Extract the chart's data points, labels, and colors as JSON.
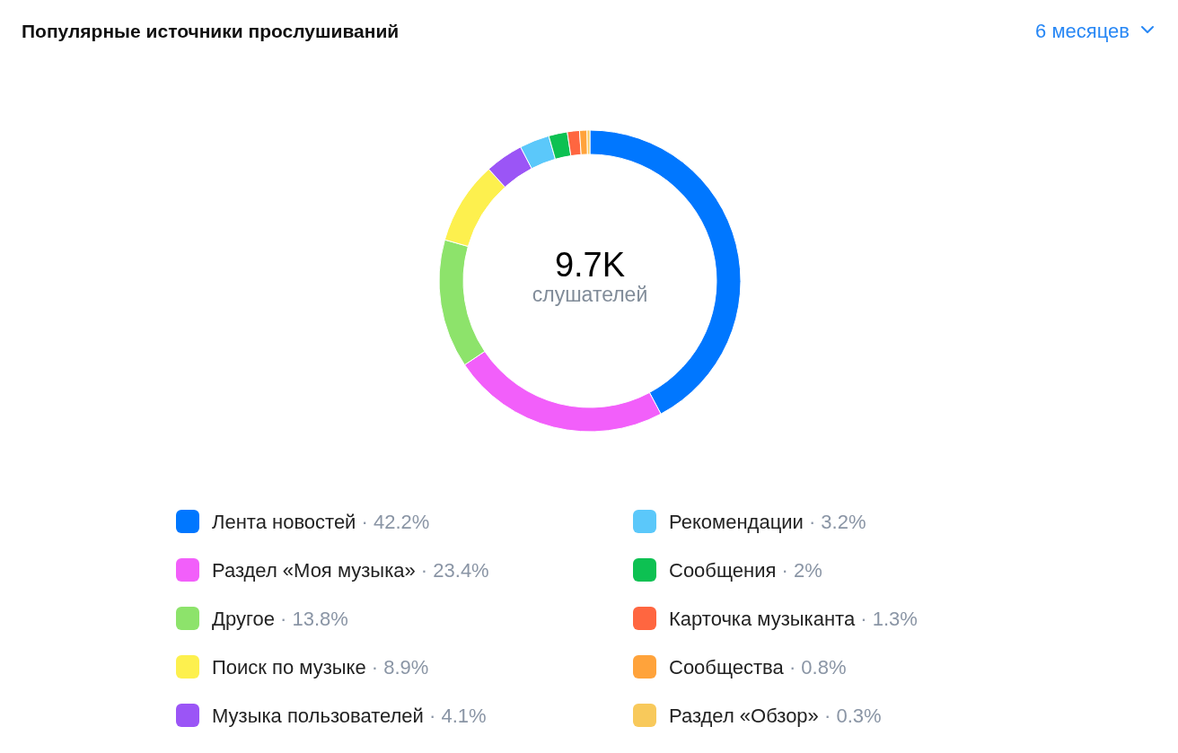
{
  "chart_data": {
    "type": "donut",
    "title": "Популярные источники прослушиваний",
    "categories": [
      "Лента новостей",
      "Раздел «Моя музыка»",
      "Другое",
      "Поиск по музыке",
      "Музыка пользователей",
      "Рекомендации",
      "Сообщения",
      "Карточка музыканта",
      "Сообщества",
      "Раздел «Обзор»"
    ],
    "values": [
      42.2,
      23.4,
      13.8,
      8.9,
      4.1,
      3.2,
      2,
      1.3,
      0.8,
      0.3
    ],
    "colors": [
      "#0077ff",
      "#f25ffa",
      "#8de36b",
      "#fdf04e",
      "#9b55f6",
      "#5bc8fa",
      "#0dc152",
      "#ff6640",
      "#ffa33b",
      "#f8c95b"
    ],
    "value_labels": [
      "· 42.2%",
      "· 23.4%",
      "· 13.8%",
      "· 8.9%",
      "· 4.1%",
      "· 3.2%",
      "· 2%",
      "· 1.3%",
      "· 0.8%",
      "· 0.3%"
    ],
    "legend": "bottom",
    "annotations": [
      "9.7K",
      "слушателей",
      "6 месяцев"
    ]
  }
}
